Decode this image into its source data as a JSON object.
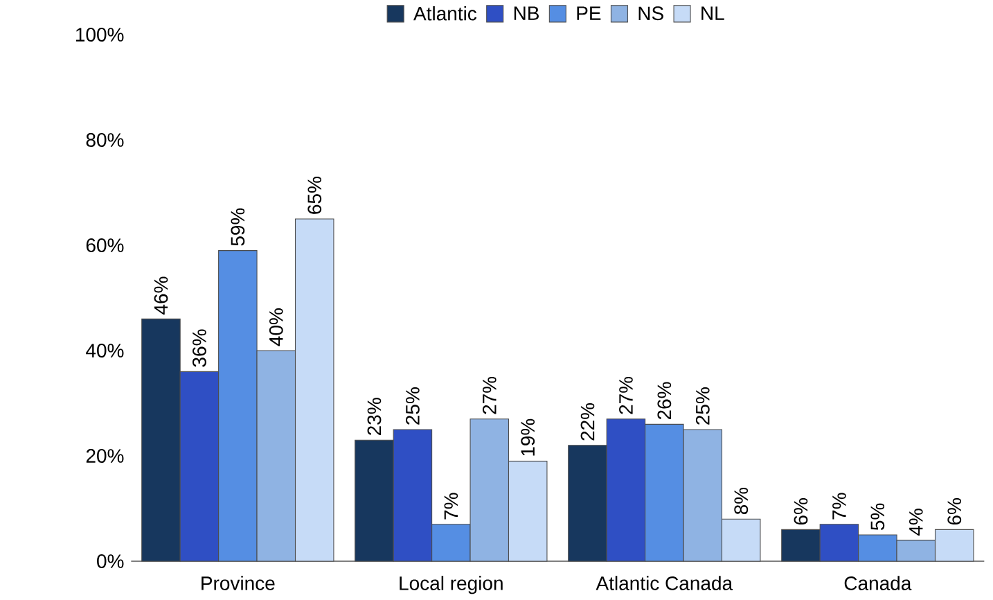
{
  "chart_data": {
    "type": "bar",
    "categories": [
      "Province",
      "Local region",
      "Atlantic Canada",
      "Canada"
    ],
    "series": [
      {
        "name": "Atlantic",
        "color": "#17375e",
        "values": [
          46,
          23,
          22,
          6
        ],
        "value_labels": [
          "46%",
          "23%",
          "22%",
          "6%"
        ]
      },
      {
        "name": "NB",
        "color": "#2f4fc4",
        "values": [
          36,
          25,
          27,
          7
        ],
        "value_labels": [
          "36%",
          "25%",
          "27%",
          "7%"
        ]
      },
      {
        "name": "PE",
        "color": "#558ee3",
        "values": [
          59,
          7,
          26,
          5
        ],
        "value_labels": [
          "59%",
          "7%",
          "26%",
          "5%"
        ]
      },
      {
        "name": "NS",
        "color": "#8fb3e3",
        "values": [
          40,
          27,
          25,
          4
        ],
        "value_labels": [
          "40%",
          "27%",
          "25%",
          "4%"
        ]
      },
      {
        "name": "NL",
        "color": "#c6dbf7",
        "values": [
          65,
          19,
          8,
          6
        ],
        "value_labels": [
          "65%",
          "19%",
          "8%",
          "6%"
        ]
      }
    ],
    "ylim": [
      0,
      100
    ],
    "yticks": [
      {
        "value": 0,
        "label": "0%"
      },
      {
        "value": 20,
        "label": "20%"
      },
      {
        "value": 40,
        "label": "40%"
      },
      {
        "value": 60,
        "label": "60%"
      },
      {
        "value": 80,
        "label": "80%"
      },
      {
        "value": 100,
        "label": "100%"
      }
    ],
    "legend": "top"
  }
}
